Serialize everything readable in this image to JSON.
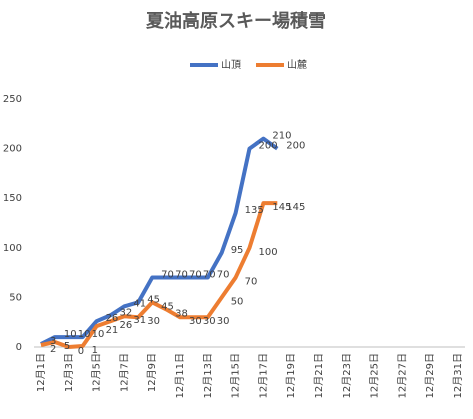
{
  "chart_data": {
    "type": "line",
    "title": "夏油高原スキー場積雪",
    "categories": [
      "12月1日",
      null,
      "12月3日",
      null,
      "12月5日",
      null,
      "12月7日",
      null,
      "12月9日",
      null,
      "12月11日",
      null,
      "12月13日",
      null,
      "12月15日",
      null,
      "12月17日",
      null,
      "12月19日",
      null,
      "12月21日",
      null,
      "12月23日",
      null,
      "12月25日",
      null,
      "12月27日",
      null,
      "12月29日",
      null,
      "12月31日"
    ],
    "series": [
      {
        "name": "山頂",
        "color": "#4472c4",
        "values": [
          3,
          10,
          10,
          10,
          26,
          32,
          41,
          45,
          70,
          70,
          70,
          70,
          70,
          95,
          135,
          200,
          210,
          200,
          null,
          null,
          null,
          null,
          null,
          null,
          null,
          null,
          null,
          null,
          null,
          null,
          null
        ]
      },
      {
        "name": "山麓",
        "color": "#ed7d31",
        "values": [
          2,
          5,
          0,
          1,
          21,
          26,
          31,
          30,
          45,
          38,
          30,
          30,
          30,
          50,
          70,
          100,
          145,
          145,
          null,
          null,
          null,
          null,
          null,
          null,
          null,
          null,
          null,
          null,
          null,
          null,
          null
        ]
      }
    ],
    "ylim": [
      0,
      250
    ],
    "yticks": [
      0,
      50,
      100,
      150,
      200,
      250
    ],
    "legend": "top"
  }
}
